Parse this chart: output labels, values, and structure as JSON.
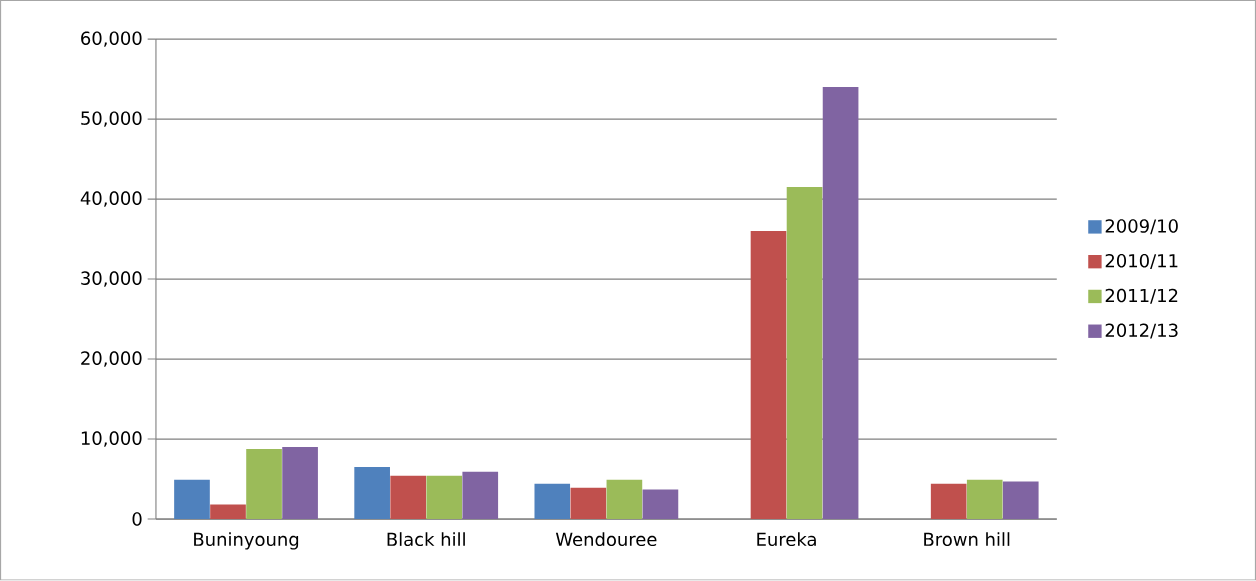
{
  "chart_data": {
    "type": "bar",
    "categories": [
      "Buninyoung",
      "Black hill",
      "Wendouree",
      "Eureka",
      "Brown hill"
    ],
    "series": [
      {
        "name": "2009/10",
        "color": "#4f81bd",
        "values": [
          4900,
          6500,
          4400,
          null,
          null
        ]
      },
      {
        "name": "2010/11",
        "color": "#c0504d",
        "values": [
          1800,
          5400,
          3900,
          36000,
          4400
        ]
      },
      {
        "name": "2011/12",
        "color": "#9bbb59",
        "values": [
          8750,
          5400,
          4900,
          41500,
          4900
        ]
      },
      {
        "name": "2012/13",
        "color": "#8064a2",
        "values": [
          9000,
          5900,
          3700,
          54000,
          4700
        ]
      }
    ],
    "ylim": [
      0,
      60000
    ],
    "yticks": [
      {
        "value": 0,
        "label": "0"
      },
      {
        "value": 10000,
        "label": "10,000"
      },
      {
        "value": 20000,
        "label": "20,000"
      },
      {
        "value": 30000,
        "label": "30,000"
      },
      {
        "value": 40000,
        "label": "40,000"
      },
      {
        "value": 50000,
        "label": "50,000"
      },
      {
        "value": 60000,
        "label": "60,000"
      }
    ],
    "grid": "y",
    "legend": "right"
  }
}
